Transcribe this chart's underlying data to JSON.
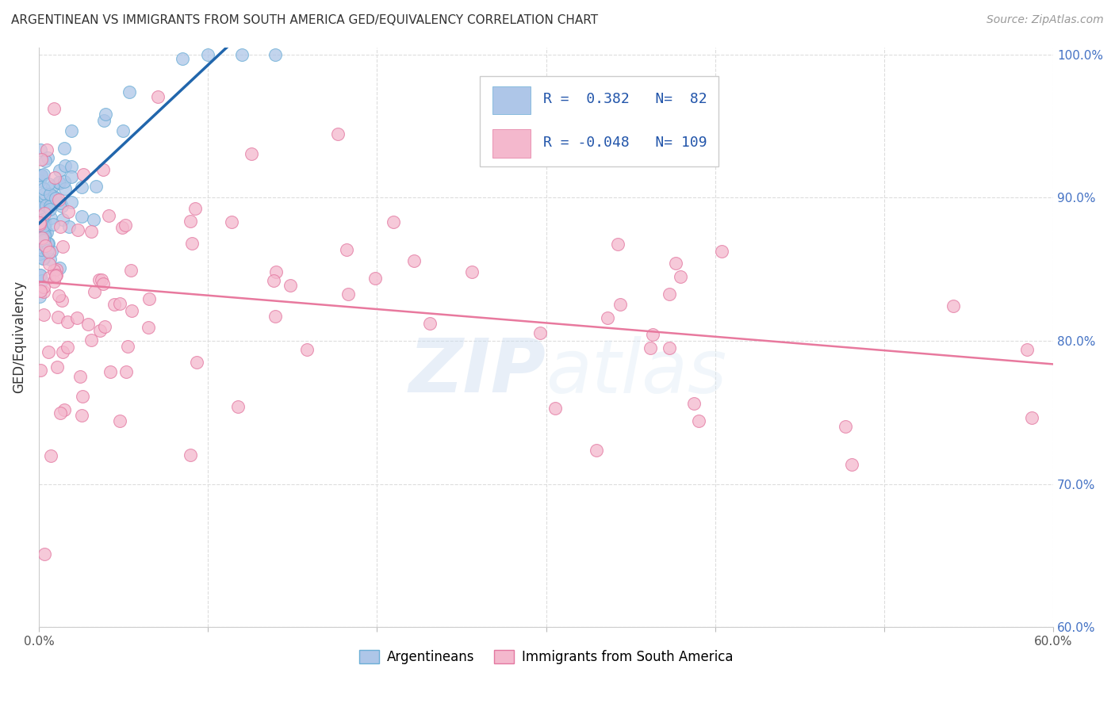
{
  "title": "ARGENTINEAN VS IMMIGRANTS FROM SOUTH AMERICA GED/EQUIVALENCY CORRELATION CHART",
  "source": "Source: ZipAtlas.com",
  "ylabel": "GED/Equivalency",
  "xlim": [
    0.0,
    0.6
  ],
  "ylim": [
    0.6,
    1.005
  ],
  "xtick_positions": [
    0.0,
    0.1,
    0.2,
    0.3,
    0.4,
    0.5,
    0.6
  ],
  "xtick_labels": [
    "0.0%",
    "",
    "",
    "",
    "",
    "",
    "60.0%"
  ],
  "ytick_positions": [
    0.6,
    0.7,
    0.8,
    0.9,
    1.0
  ],
  "ytick_labels": [
    "60.0%",
    "70.0%",
    "80.0%",
    "90.0%",
    "100.0%"
  ],
  "blue_color": "#aec6e8",
  "blue_edge_color": "#6baed6",
  "pink_color": "#f4b8cd",
  "pink_edge_color": "#e377a0",
  "blue_line_color": "#2166ac",
  "pink_line_color": "#e8799e",
  "legend_blue_r": "0.382",
  "legend_blue_n": "82",
  "legend_pink_r": "-0.048",
  "legend_pink_n": "109",
  "watermark_zip": "ZIP",
  "watermark_atlas": "atlas",
  "legend_text_color": "#2255aa",
  "title_color": "#333333",
  "source_color": "#999999",
  "right_axis_color": "#4472c4",
  "grid_color": "#dddddd",
  "legend_box_edge": "#cccccc"
}
